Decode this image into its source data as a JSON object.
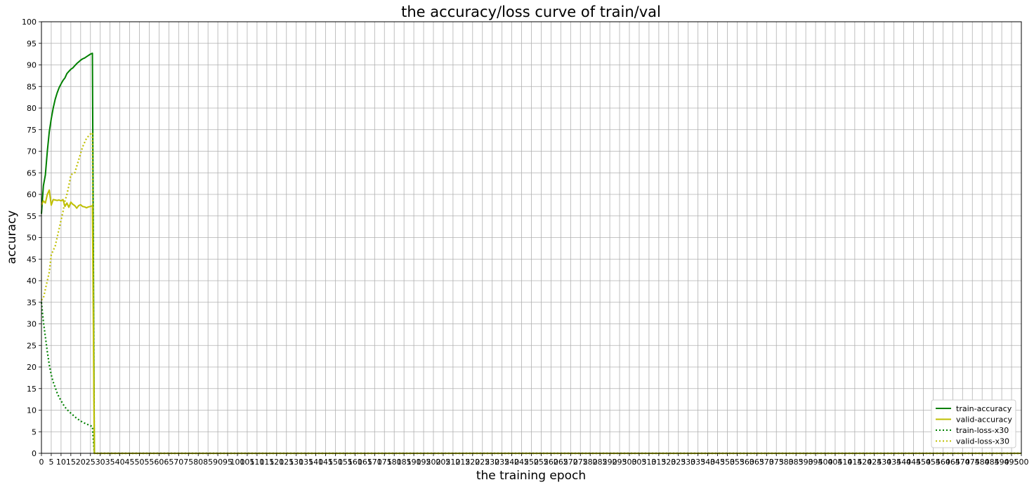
{
  "chart_data": {
    "type": "line",
    "title": "the accuracy/loss curve of train/val",
    "xlabel": "the training epoch",
    "ylabel": "accuracy",
    "xlim": [
      0,
      500
    ],
    "ylim": [
      0,
      100
    ],
    "xtick_step": 5,
    "ytick_step": 5,
    "grid": true,
    "legend_position": "lower-right",
    "series": [
      {
        "name": "train-accuracy",
        "color": "#008000",
        "style": "solid",
        "x": [
          0,
          1,
          2,
          3,
          4,
          5,
          6,
          7,
          8,
          9,
          10,
          11,
          12,
          13,
          14,
          15,
          16,
          17,
          18,
          19,
          20,
          21,
          22,
          23,
          24,
          25,
          26,
          27,
          28,
          29,
          500
        ],
        "y": [
          55.5,
          62.0,
          64.5,
          70.0,
          74.5,
          77.5,
          80.0,
          82.0,
          83.5,
          84.7,
          85.6,
          86.4,
          87.0,
          88.0,
          88.5,
          89.0,
          89.3,
          89.8,
          90.3,
          90.7,
          91.1,
          91.4,
          91.6,
          91.9,
          92.2,
          92.5,
          92.7,
          0,
          0,
          0,
          0
        ]
      },
      {
        "name": "valid-accuracy",
        "color": "#bfbf00",
        "style": "solid",
        "x": [
          0,
          1,
          2,
          3,
          4,
          5,
          6,
          7,
          8,
          9,
          10,
          11,
          12,
          13,
          14,
          15,
          16,
          17,
          18,
          19,
          20,
          21,
          22,
          23,
          24,
          25,
          26,
          27,
          28,
          29,
          500
        ],
        "y": [
          57.5,
          58.5,
          58.0,
          60.0,
          61.0,
          57.5,
          58.8,
          58.7,
          58.6,
          58.7,
          58.5,
          58.8,
          57.2,
          58.0,
          57.0,
          58.2,
          57.7,
          57.4,
          56.8,
          57.4,
          57.6,
          57.2,
          57.1,
          56.9,
          57.1,
          57.2,
          57.4,
          0,
          0,
          0,
          0
        ]
      },
      {
        "name": "train-loss-x30",
        "color": "#008000",
        "style": "dotted",
        "x": [
          0,
          1,
          2,
          3,
          4,
          5,
          6,
          7,
          8,
          9,
          10,
          11,
          12,
          13,
          14,
          15,
          16,
          17,
          18,
          19,
          20,
          21,
          22,
          23,
          24,
          25,
          26,
          27,
          28,
          29,
          500
        ],
        "y": [
          35.0,
          30.5,
          27.0,
          23.5,
          20.5,
          18.2,
          16.5,
          15.3,
          14.0,
          13.0,
          12.2,
          11.4,
          10.7,
          10.2,
          9.7,
          9.3,
          8.9,
          8.5,
          8.1,
          7.8,
          7.5,
          7.2,
          7.0,
          6.8,
          6.6,
          6.4,
          6.2,
          0,
          0,
          0,
          0
        ]
      },
      {
        "name": "valid-loss-x30",
        "color": "#bfbf00",
        "style": "dotted",
        "x": [
          0,
          1,
          2,
          3,
          4,
          5,
          6,
          7,
          8,
          9,
          10,
          11,
          12,
          13,
          14,
          15,
          16,
          17,
          18,
          19,
          20,
          21,
          22,
          23,
          24,
          25,
          26,
          27,
          28,
          29,
          500
        ],
        "y": [
          35.5,
          36.0,
          38.0,
          40.0,
          42.0,
          46.0,
          47.0,
          48.0,
          50.0,
          52.0,
          54.0,
          56.0,
          58.5,
          60.0,
          62.0,
          64.5,
          64.8,
          65.0,
          66.5,
          68.0,
          69.5,
          71.0,
          72.0,
          73.0,
          73.5,
          74.0,
          74.3,
          0,
          0,
          0,
          0
        ]
      }
    ]
  }
}
